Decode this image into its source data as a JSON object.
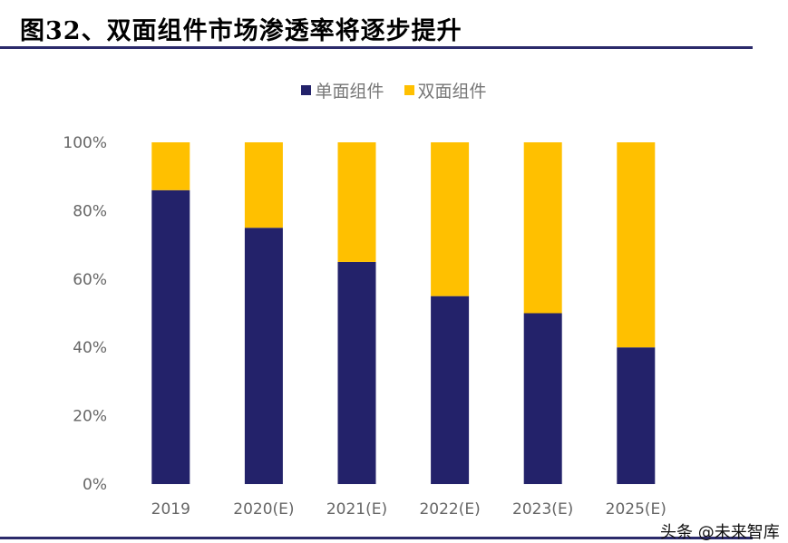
{
  "title": "图32、双面组件市场渗透率将逐步提升",
  "watermark": "头条 @未来智库",
  "chart_data": {
    "type": "bar",
    "stacked": true,
    "categories": [
      "2019",
      "2020(E)",
      "2021(E)",
      "2022(E)",
      "2023(E)",
      "2025(E)"
    ],
    "series": [
      {
        "name": "单面组件",
        "color": "#23226a",
        "values": [
          86,
          75,
          65,
          55,
          50,
          40
        ]
      },
      {
        "name": "双面组件",
        "color": "#ffc000",
        "values": [
          14,
          25,
          35,
          45,
          50,
          60
        ]
      }
    ],
    "ylim": [
      0,
      100
    ],
    "yticks": [
      "0%",
      "20%",
      "40%",
      "60%",
      "80%",
      "100%"
    ],
    "legend": "top-center",
    "grid": false
  }
}
